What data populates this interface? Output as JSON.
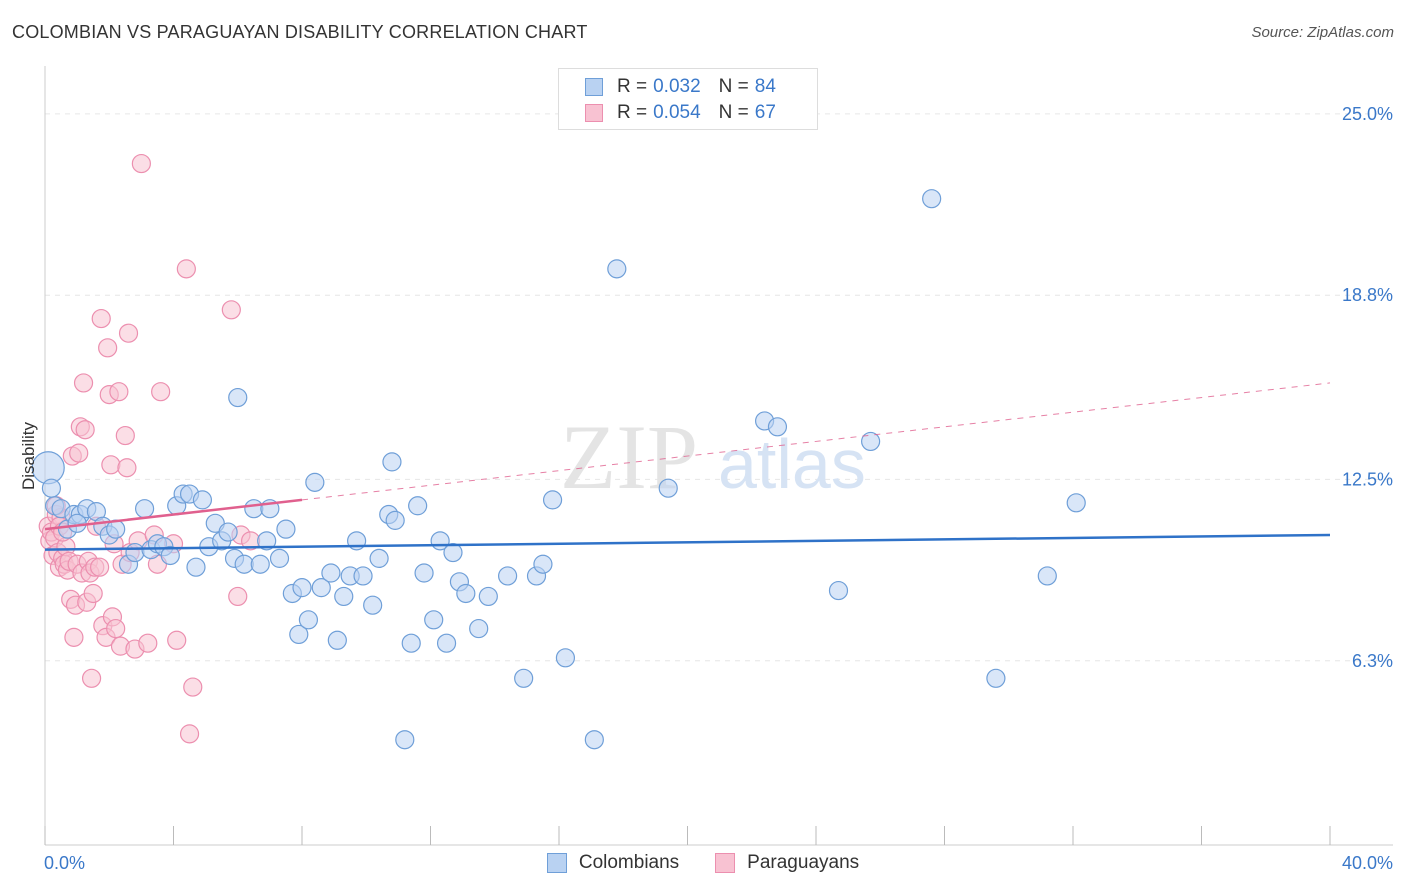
{
  "title": "COLOMBIAN VS PARAGUAYAN DISABILITY CORRELATION CHART",
  "source": "Source: ZipAtlas.com",
  "watermark": {
    "zip": "ZIP",
    "atlas": "atlas"
  },
  "legend": {
    "rows": [
      {
        "r_label": "R = ",
        "r_value": "0.032",
        "n_label": "N = ",
        "n_value": "84"
      },
      {
        "r_label": "R = ",
        "r_value": "0.054",
        "n_label": "N = ",
        "n_value": "67"
      }
    ]
  },
  "bottom_legend": {
    "colombians": "Colombians",
    "paraguayans": "Paraguayans"
  },
  "colors": {
    "blue_fill": "#b9d2f2",
    "blue_stroke": "#6f9fd8",
    "blue_line": "#2f72c8",
    "pink_fill": "#f8c2d2",
    "pink_stroke": "#ec8faf",
    "pink_line": "#e0608e",
    "tick_text": "#3a78c9",
    "grid": "#e6e6e6"
  },
  "chart_data": {
    "type": "scatter",
    "title": "COLOMBIAN VS PARAGUAYAN DISABILITY CORRELATION CHART",
    "ylabel": "Disability",
    "xlim": [
      0,
      40
    ],
    "ylim": [
      0,
      26.5
    ],
    "x_tick_labels": [
      "0.0%",
      "40.0%"
    ],
    "y_ticks": [
      6.3,
      12.5,
      18.8,
      25.0
    ],
    "y_tick_labels": [
      "6.3%",
      "12.5%",
      "18.8%",
      "25.0%"
    ],
    "series": [
      {
        "name": "Colombians",
        "r": 0.032,
        "n": 84,
        "trend": {
          "x0": 0,
          "y0": 10.1,
          "x1": 40,
          "y1": 10.6,
          "dashed_from": null
        },
        "points": [
          [
            0.1,
            12.9
          ],
          [
            0.3,
            11.6
          ],
          [
            0.5,
            11.5
          ],
          [
            0.7,
            10.8
          ],
          [
            0.9,
            11.3
          ],
          [
            1.1,
            11.3
          ],
          [
            1.3,
            11.5
          ],
          [
            1.6,
            11.4
          ],
          [
            1.8,
            10.9
          ],
          [
            2.0,
            10.6
          ],
          [
            2.2,
            10.8
          ],
          [
            2.6,
            9.6
          ],
          [
            2.8,
            10.0
          ],
          [
            3.1,
            11.5
          ],
          [
            3.3,
            10.1
          ],
          [
            3.5,
            10.3
          ],
          [
            3.7,
            10.2
          ],
          [
            3.9,
            9.9
          ],
          [
            4.1,
            11.6
          ],
          [
            4.3,
            12.0
          ],
          [
            4.5,
            12.0
          ],
          [
            4.7,
            9.5
          ],
          [
            4.9,
            11.8
          ],
          [
            5.1,
            10.2
          ],
          [
            5.3,
            11.0
          ],
          [
            5.5,
            10.4
          ],
          [
            5.7,
            10.7
          ],
          [
            5.9,
            9.8
          ],
          [
            6.0,
            15.3
          ],
          [
            6.2,
            9.6
          ],
          [
            6.5,
            11.5
          ],
          [
            6.7,
            9.6
          ],
          [
            6.9,
            10.4
          ],
          [
            7.0,
            11.5
          ],
          [
            7.3,
            9.8
          ],
          [
            7.5,
            10.8
          ],
          [
            7.7,
            8.6
          ],
          [
            7.9,
            7.2
          ],
          [
            8.0,
            8.8
          ],
          [
            8.2,
            7.7
          ],
          [
            8.4,
            12.4
          ],
          [
            8.6,
            8.8
          ],
          [
            8.9,
            9.3
          ],
          [
            9.1,
            7.0
          ],
          [
            9.3,
            8.5
          ],
          [
            9.5,
            9.2
          ],
          [
            9.7,
            10.4
          ],
          [
            9.9,
            9.2
          ],
          [
            10.2,
            8.2
          ],
          [
            10.4,
            9.8
          ],
          [
            10.7,
            11.3
          ],
          [
            10.8,
            13.1
          ],
          [
            10.9,
            11.1
          ],
          [
            11.2,
            3.6
          ],
          [
            11.4,
            6.9
          ],
          [
            11.6,
            11.6
          ],
          [
            11.8,
            9.3
          ],
          [
            12.1,
            7.7
          ],
          [
            12.3,
            10.4
          ],
          [
            12.5,
            6.9
          ],
          [
            12.7,
            10.0
          ],
          [
            12.9,
            9.0
          ],
          [
            13.1,
            8.6
          ],
          [
            13.5,
            7.4
          ],
          [
            13.8,
            8.5
          ],
          [
            14.4,
            9.2
          ],
          [
            14.9,
            5.7
          ],
          [
            15.3,
            9.2
          ],
          [
            15.5,
            9.6
          ],
          [
            15.8,
            11.8
          ],
          [
            16.2,
            6.4
          ],
          [
            17.1,
            3.6
          ],
          [
            17.8,
            19.7
          ],
          [
            19.4,
            12.2
          ],
          [
            22.4,
            14.5
          ],
          [
            22.8,
            14.3
          ],
          [
            24.7,
            8.7
          ],
          [
            25.7,
            13.8
          ],
          [
            27.6,
            22.1
          ],
          [
            29.6,
            5.7
          ],
          [
            31.2,
            9.2
          ],
          [
            32.1,
            11.7
          ],
          [
            0.2,
            12.2
          ],
          [
            1.0,
            11.0
          ]
        ]
      },
      {
        "name": "Paraguayans",
        "r": 0.054,
        "n": 67,
        "trend": {
          "x0": 0,
          "y0": 10.8,
          "x1": 40,
          "y1": 15.8,
          "solid_until_x": 8.0
        },
        "points": [
          [
            0.1,
            10.9
          ],
          [
            0.15,
            10.4
          ],
          [
            0.2,
            10.7
          ],
          [
            0.25,
            9.9
          ],
          [
            0.3,
            10.5
          ],
          [
            0.35,
            11.3
          ],
          [
            0.4,
            10.0
          ],
          [
            0.45,
            9.5
          ],
          [
            0.5,
            11.2
          ],
          [
            0.55,
            9.8
          ],
          [
            0.6,
            9.6
          ],
          [
            0.65,
            10.2
          ],
          [
            0.7,
            9.4
          ],
          [
            0.75,
            9.7
          ],
          [
            0.8,
            8.4
          ],
          [
            0.85,
            13.3
          ],
          [
            0.9,
            7.1
          ],
          [
            0.95,
            8.2
          ],
          [
            1.0,
            9.6
          ],
          [
            1.05,
            13.4
          ],
          [
            1.1,
            14.3
          ],
          [
            1.15,
            9.3
          ],
          [
            1.2,
            15.8
          ],
          [
            1.25,
            14.2
          ],
          [
            1.3,
            8.3
          ],
          [
            1.35,
            9.7
          ],
          [
            1.4,
            9.3
          ],
          [
            1.45,
            5.7
          ],
          [
            1.5,
            8.6
          ],
          [
            1.55,
            9.5
          ],
          [
            1.6,
            10.9
          ],
          [
            1.7,
            9.5
          ],
          [
            1.75,
            18.0
          ],
          [
            1.8,
            7.5
          ],
          [
            1.9,
            7.1
          ],
          [
            1.95,
            17.0
          ],
          [
            2.0,
            15.4
          ],
          [
            2.05,
            13.0
          ],
          [
            2.1,
            7.8
          ],
          [
            2.15,
            10.3
          ],
          [
            2.2,
            7.4
          ],
          [
            2.3,
            15.5
          ],
          [
            2.35,
            6.8
          ],
          [
            2.4,
            9.6
          ],
          [
            2.5,
            14.0
          ],
          [
            2.55,
            12.9
          ],
          [
            2.6,
            17.5
          ],
          [
            2.65,
            10.0
          ],
          [
            2.8,
            6.7
          ],
          [
            2.9,
            10.4
          ],
          [
            3.0,
            23.3
          ],
          [
            3.2,
            6.9
          ],
          [
            3.4,
            10.6
          ],
          [
            3.5,
            9.6
          ],
          [
            3.6,
            15.5
          ],
          [
            4.0,
            10.3
          ],
          [
            4.1,
            7.0
          ],
          [
            4.4,
            19.7
          ],
          [
            4.5,
            3.8
          ],
          [
            4.6,
            5.4
          ],
          [
            5.8,
            18.3
          ],
          [
            6.0,
            8.5
          ],
          [
            6.1,
            10.6
          ],
          [
            6.4,
            10.4
          ],
          [
            0.35,
            11.6
          ],
          [
            0.45,
            10.9
          ],
          [
            0.55,
            10.7
          ]
        ]
      }
    ]
  }
}
